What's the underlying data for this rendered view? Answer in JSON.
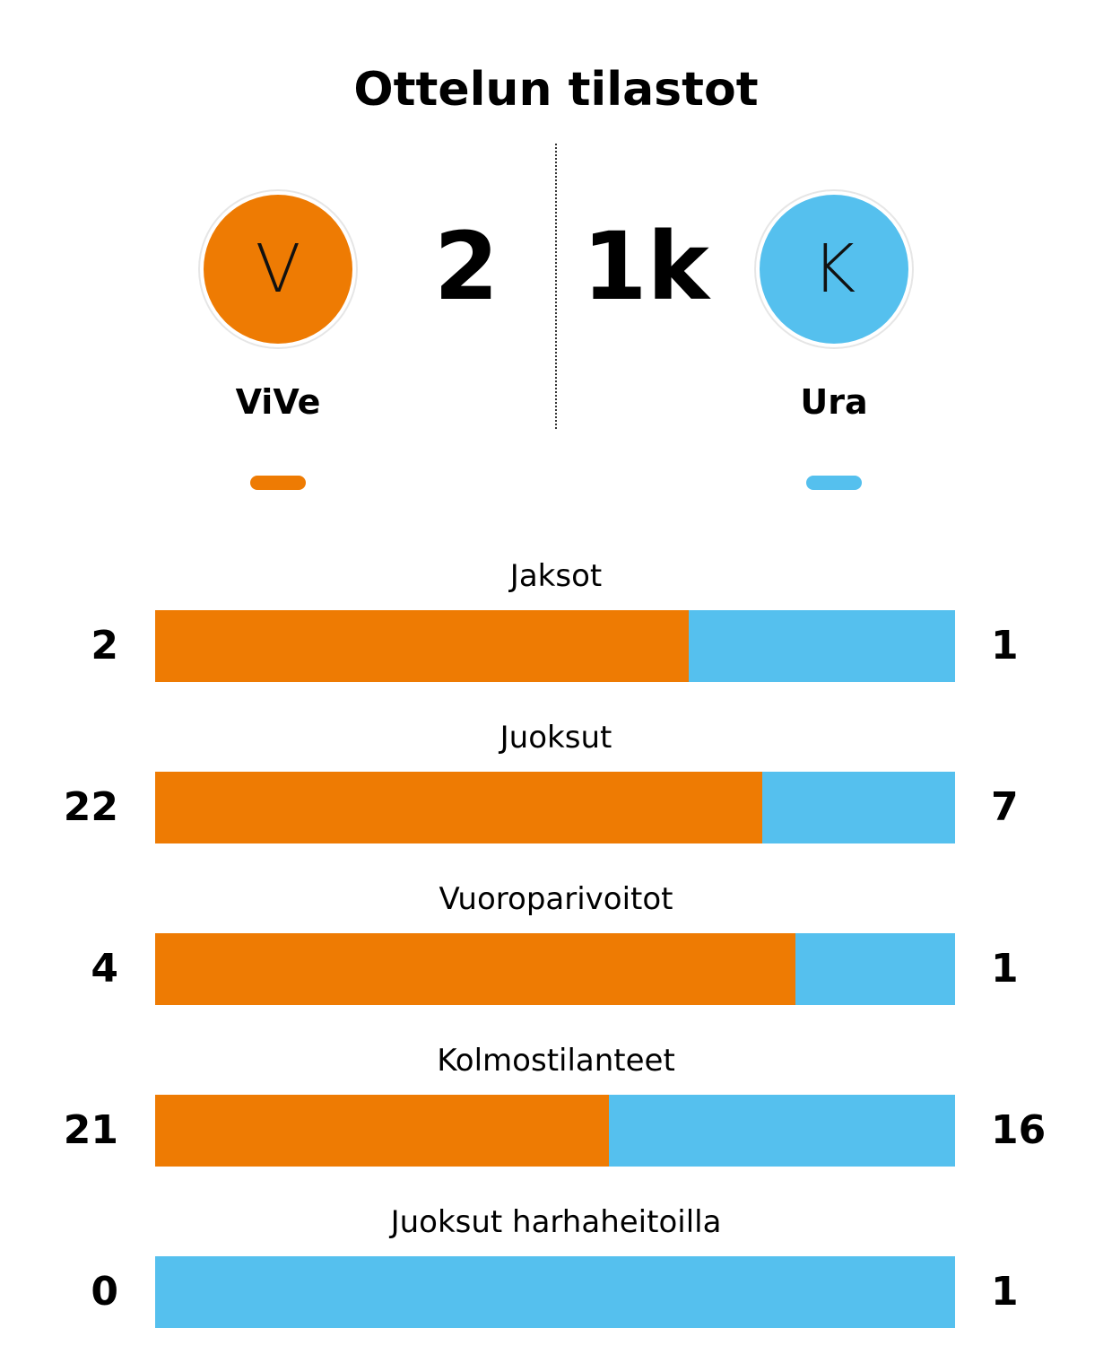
{
  "title": "Ottelun tilastot",
  "home": {
    "name": "ViVe",
    "initial": "V",
    "score": "2",
    "color": "#ee7b03"
  },
  "away": {
    "name": "Ura",
    "initial": "K",
    "score": "1k",
    "color": "#55c0ee"
  },
  "chart_data": {
    "type": "bar",
    "orientation": "horizontal-stacked",
    "categories": [
      "Jaksot",
      "Juoksut",
      "Vuoroparivoitot",
      "Kolmostilanteet",
      "Juoksut harhaheitoilla"
    ],
    "series": [
      {
        "name": "ViVe",
        "values": [
          2,
          22,
          4,
          21,
          0
        ],
        "color": "#ee7b03"
      },
      {
        "name": "Ura",
        "values": [
          1,
          7,
          1,
          16,
          1
        ],
        "color": "#55c0ee"
      }
    ]
  }
}
